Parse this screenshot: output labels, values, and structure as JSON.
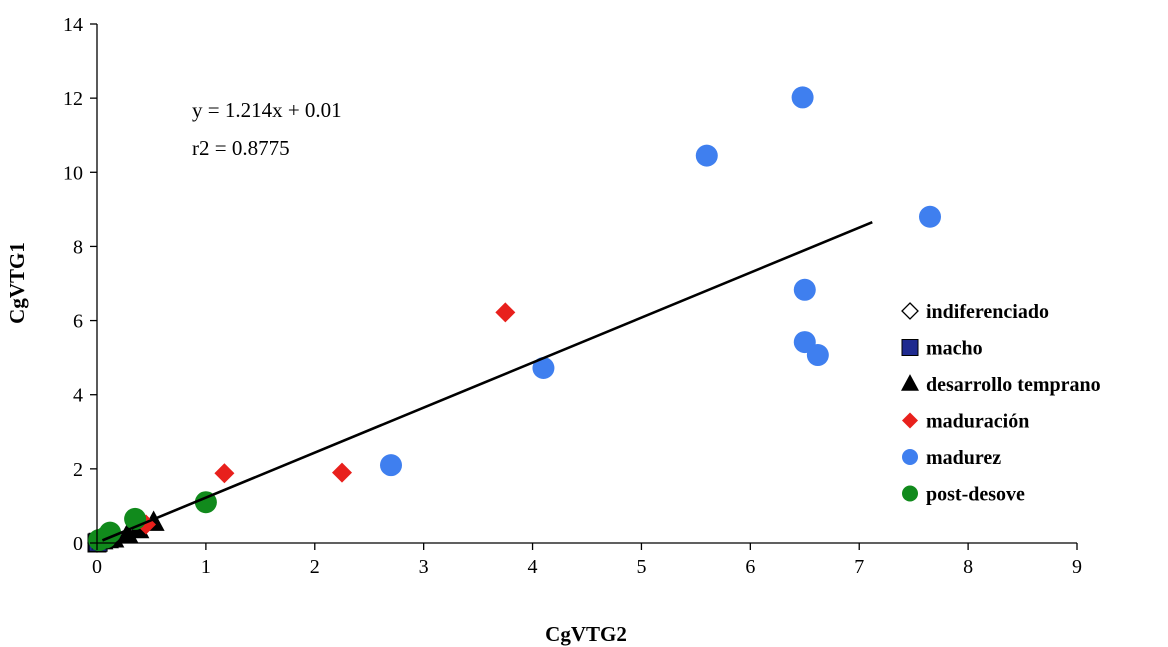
{
  "chart_data": {
    "type": "scatter",
    "xlabel": "CgVTG2",
    "ylabel": "CgVTG1",
    "xlim": [
      0,
      9
    ],
    "ylim": [
      0,
      14
    ],
    "xticks": [
      "0",
      "1",
      "2",
      "3",
      "4",
      "5",
      "6",
      "7",
      "8",
      "9"
    ],
    "yticks": [
      "0",
      "2",
      "4",
      "6",
      "8",
      "10",
      "12",
      "14"
    ],
    "grid": false,
    "legend_position": "right",
    "annotation": {
      "equation": "y = 1.214x + 0.01",
      "r2": "r2 = 0.8775"
    },
    "trendline": {
      "slope": 1.214,
      "intercept": 0.01,
      "x_range": [
        0.05,
        7.12
      ],
      "color": "#000000"
    },
    "series": [
      {
        "name": "indiferenciado",
        "marker": "diamond-open",
        "color": "#000000",
        "points": [
          [
            0.0,
            0.0
          ],
          [
            0.02,
            0.03
          ]
        ]
      },
      {
        "name": "macho",
        "marker": "square",
        "color": "#1f2a8f",
        "points": [
          [
            0.0,
            0.0
          ],
          [
            0.01,
            0.02
          ]
        ]
      },
      {
        "name": "desarrollo temprano",
        "marker": "triangle",
        "color": "#000000",
        "points": [
          [
            0.05,
            0.05
          ],
          [
            0.1,
            0.08
          ],
          [
            0.15,
            0.1
          ],
          [
            0.38,
            0.35
          ],
          [
            0.52,
            0.55
          ],
          [
            0.28,
            0.22
          ]
        ]
      },
      {
        "name": "maduración",
        "marker": "diamond",
        "color": "#e8201c",
        "points": [
          [
            0.45,
            0.5
          ],
          [
            1.17,
            1.88
          ],
          [
            2.25,
            1.9
          ],
          [
            3.75,
            6.22
          ]
        ]
      },
      {
        "name": "madurez",
        "marker": "circle",
        "color": "#3f7fef",
        "points": [
          [
            2.7,
            2.1
          ],
          [
            4.1,
            4.72
          ],
          [
            5.6,
            10.45
          ],
          [
            6.48,
            12.02
          ],
          [
            7.65,
            8.8
          ],
          [
            6.5,
            6.83
          ],
          [
            6.5,
            5.42
          ],
          [
            6.62,
            5.07
          ]
        ]
      },
      {
        "name": "post-desove",
        "marker": "circle",
        "color": "#118a1c",
        "points": [
          [
            0.02,
            0.08
          ],
          [
            0.12,
            0.28
          ],
          [
            0.35,
            0.65
          ],
          [
            1.0,
            1.1
          ],
          [
            0.08,
            0.15
          ]
        ]
      }
    ]
  }
}
